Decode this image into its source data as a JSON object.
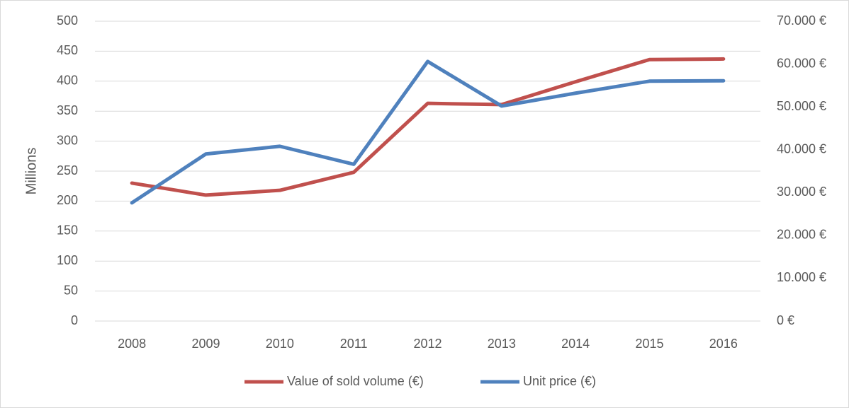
{
  "chart_data": {
    "type": "line",
    "y_axis_label": "Millions",
    "categories": [
      "2008",
      "2009",
      "2010",
      "2011",
      "2012",
      "2013",
      "2014",
      "2015",
      "2016"
    ],
    "series": [
      {
        "name": "Value of sold volume (€)",
        "color": "#c0504d",
        "values": [
          230,
          210,
          218,
          248,
          363,
          361,
          399,
          436,
          437
        ]
      },
      {
        "name": "Unit price (€)",
        "color": "#4f81bd",
        "axis": "y2",
        "values": [
          27600,
          39000,
          40800,
          36600,
          60600,
          50200,
          53200,
          56000,
          56100
        ]
      }
    ],
    "ylim": [
      0,
      500
    ],
    "yticks": [
      0,
      50,
      100,
      150,
      200,
      250,
      300,
      350,
      400,
      450,
      500
    ],
    "y2lim": [
      0,
      70000
    ],
    "y2ticks": [
      {
        "value": 0,
        "label": "0 €"
      },
      {
        "value": 10000,
        "label": "10.000 €"
      },
      {
        "value": 20000,
        "label": "20.000 €"
      },
      {
        "value": 30000,
        "label": "30.000 €"
      },
      {
        "value": 40000,
        "label": "40.000 €"
      },
      {
        "value": 50000,
        "label": "50.000 €"
      },
      {
        "value": 60000,
        "label": "60.000 €"
      },
      {
        "value": 70000,
        "label": "70.000 €"
      }
    ],
    "grid": true,
    "legend": "bottom"
  }
}
